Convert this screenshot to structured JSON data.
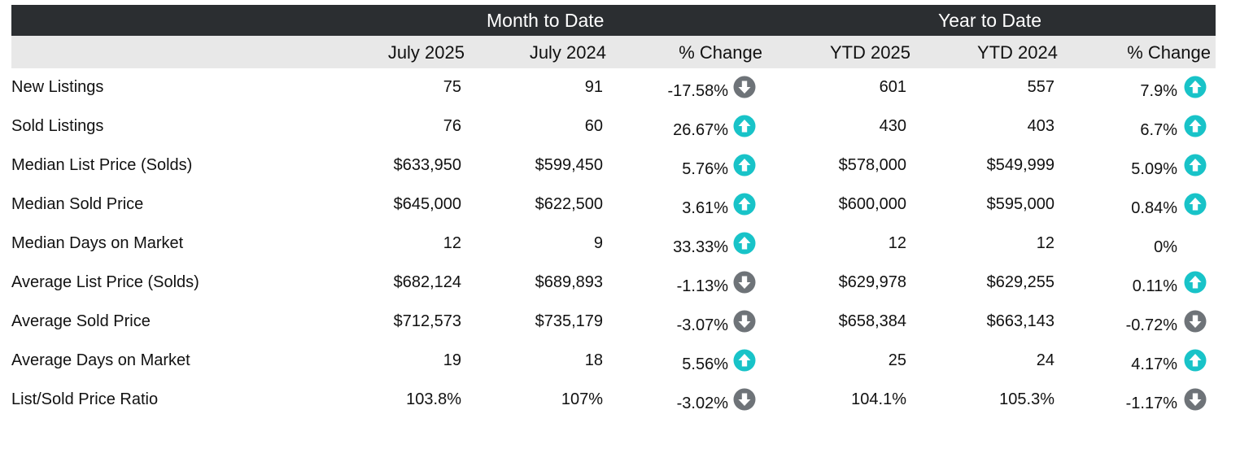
{
  "header": {
    "mtd_title": "Month to Date",
    "ytd_title": "Year to Date"
  },
  "columns": [
    "July 2025",
    "July 2024",
    "% Change",
    "YTD 2025",
    "YTD 2024",
    "% Change"
  ],
  "colors": {
    "header_bg": "#2b2e31",
    "subheader_bg": "#e8e8e8",
    "up_arrow": "#18c3c8",
    "down_arrow": "#6e7378"
  },
  "rows": [
    {
      "label": "New Listings",
      "m_cur": "75",
      "m_prev": "91",
      "m_chg": "-17.58%",
      "m_dir": "down",
      "y_cur": "601",
      "y_prev": "557",
      "y_chg": "7.9%",
      "y_dir": "up"
    },
    {
      "label": "Sold Listings",
      "m_cur": "76",
      "m_prev": "60",
      "m_chg": "26.67%",
      "m_dir": "up",
      "y_cur": "430",
      "y_prev": "403",
      "y_chg": "6.7%",
      "y_dir": "up"
    },
    {
      "label": "Median List Price (Solds)",
      "m_cur": "$633,950",
      "m_prev": "$599,450",
      "m_chg": "5.76%",
      "m_dir": "up",
      "y_cur": "$578,000",
      "y_prev": "$549,999",
      "y_chg": "5.09%",
      "y_dir": "up"
    },
    {
      "label": "Median Sold Price",
      "m_cur": "$645,000",
      "m_prev": "$622,500",
      "m_chg": "3.61%",
      "m_dir": "up",
      "y_cur": "$600,000",
      "y_prev": "$595,000",
      "y_chg": "0.84%",
      "y_dir": "up"
    },
    {
      "label": "Median Days on Market",
      "m_cur": "12",
      "m_prev": "9",
      "m_chg": "33.33%",
      "m_dir": "up",
      "y_cur": "12",
      "y_prev": "12",
      "y_chg": "0%",
      "y_dir": "none"
    },
    {
      "label": "Average List Price (Solds)",
      "m_cur": "$682,124",
      "m_prev": "$689,893",
      "m_chg": "-1.13%",
      "m_dir": "down",
      "y_cur": "$629,978",
      "y_prev": "$629,255",
      "y_chg": "0.11%",
      "y_dir": "up"
    },
    {
      "label": "Average Sold Price",
      "m_cur": "$712,573",
      "m_prev": "$735,179",
      "m_chg": "-3.07%",
      "m_dir": "down",
      "y_cur": "$658,384",
      "y_prev": "$663,143",
      "y_chg": "-0.72%",
      "y_dir": "down"
    },
    {
      "label": "Average Days on Market",
      "m_cur": "19",
      "m_prev": "18",
      "m_chg": "5.56%",
      "m_dir": "up",
      "y_cur": "25",
      "y_prev": "24",
      "y_chg": "4.17%",
      "y_dir": "up"
    },
    {
      "label": "List/Sold Price Ratio",
      "m_cur": "103.8%",
      "m_prev": "107%",
      "m_chg": "-3.02%",
      "m_dir": "down",
      "y_cur": "104.1%",
      "y_prev": "105.3%",
      "y_chg": "-1.17%",
      "y_dir": "down"
    }
  ]
}
